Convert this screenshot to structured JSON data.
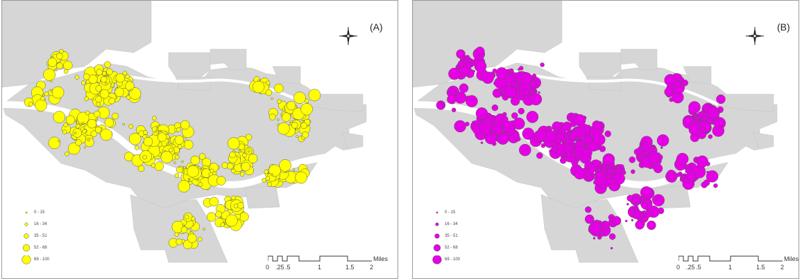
{
  "panels": [
    {
      "id": "A",
      "label": "(A)",
      "symbol_color": "#ffff00",
      "legend": [
        "0 - 15",
        "16 - 34",
        "35 - 51",
        "52 - 68",
        "69 - 100"
      ]
    },
    {
      "id": "B",
      "label": "(B)",
      "symbol_color": "#e600e6",
      "legend": [
        "0 - 15",
        "16 - 34",
        "35 - 51",
        "52 - 68",
        "69 - 100"
      ]
    }
  ],
  "scalebar": {
    "ticks": [
      "0",
      ".25",
      ".5",
      "1",
      "1.5",
      "2"
    ],
    "unit": "Miles"
  },
  "map_colors": {
    "land": "#d6d6d6",
    "water": "#ffffff",
    "outline": "#333333"
  },
  "icons": {
    "north_arrow": "compass-rose-icon"
  }
}
